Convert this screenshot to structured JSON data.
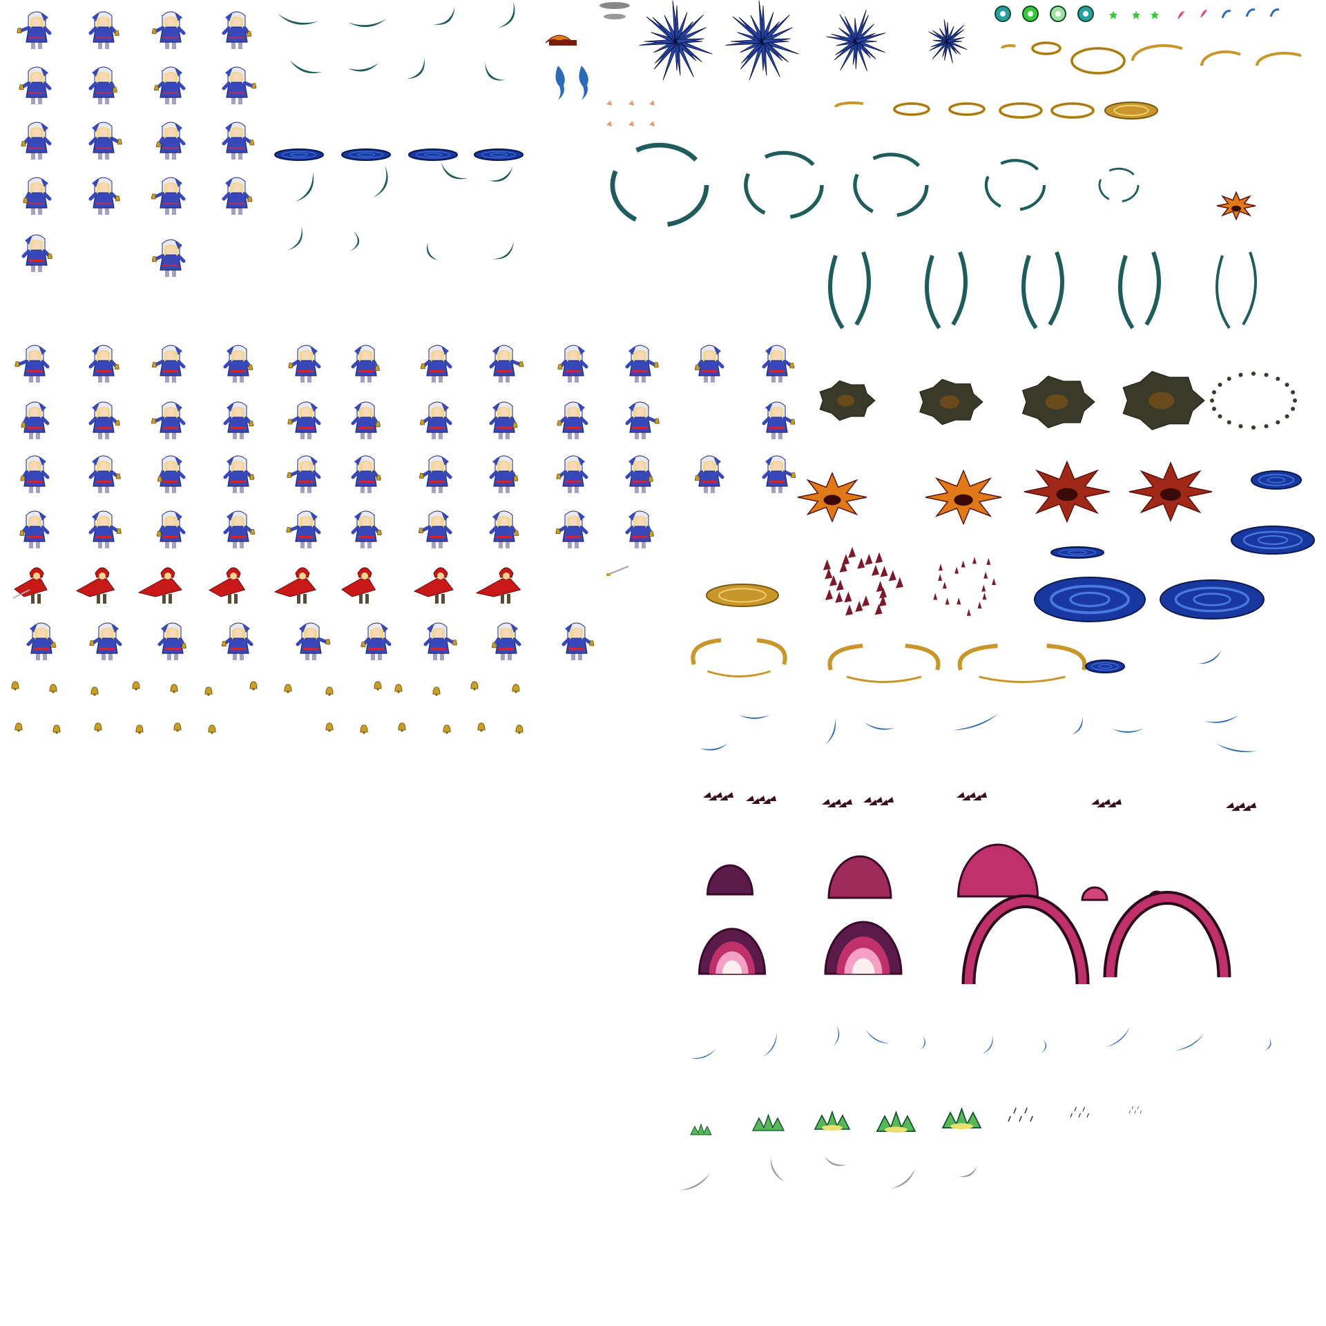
{
  "sheet": {
    "kind": "sprite-sheet",
    "background": "#ffffff",
    "palette": {
      "robe_blue": "#3848b8",
      "robe_shadow": "#20286c",
      "hood_white": "#e8e8f8",
      "hair_blonde": "#f0d890",
      "skin": "#f8d8b8",
      "boots": "#a8a0c0",
      "sash_red": "#c82838",
      "bell_gold": "#c8a028",
      "bell_dark": "#7a5a10",
      "red_coat": "#c81818",
      "slash_teal": "#1f5c5c",
      "shard_blue": "#2848a8",
      "vortex_blue": "#1838a0",
      "vortex_light": "#4878e0",
      "ring_gold": "#c8962a",
      "smoke_dark": "#3a3a2a",
      "smoke_core": "#6a4a1a",
      "fire_orange": "#e07a18",
      "fire_red": "#a02818",
      "crimson_shard": "#7a1a2a",
      "arc_blue": "#2a6ab8",
      "dark_wisp": "#3a1020",
      "dome_dark": "#5a1a4a",
      "dome_pink": "#c0306a",
      "dome_light": "#f4a0c4",
      "dome_core": "#fff0f0",
      "splash_green": "#58b858",
      "splash_yellow": "#e8e070",
      "white_slash": "#9a9aa8",
      "star_green": "#38c838",
      "star_pink": "#e04880"
    },
    "icons": [
      "mage-sprite",
      "red-swordsman-sprite",
      "bell-item",
      "sword-item",
      "teal-slash-fx",
      "vortex-disc-fx",
      "crystal-burst-fx",
      "golden-ring-fx",
      "smoke-cloud-fx",
      "fire-burst-fx",
      "crimson-shard-fx",
      "blue-arc-fx",
      "dark-wisp-fx",
      "pink-dome-fx",
      "pink-arch-fx",
      "green-splash-fx",
      "white-slash-fx",
      "green-orb-icon",
      "star-icon",
      "feather-icon",
      "ember-fx",
      "blue-flame-fx"
    ]
  }
}
